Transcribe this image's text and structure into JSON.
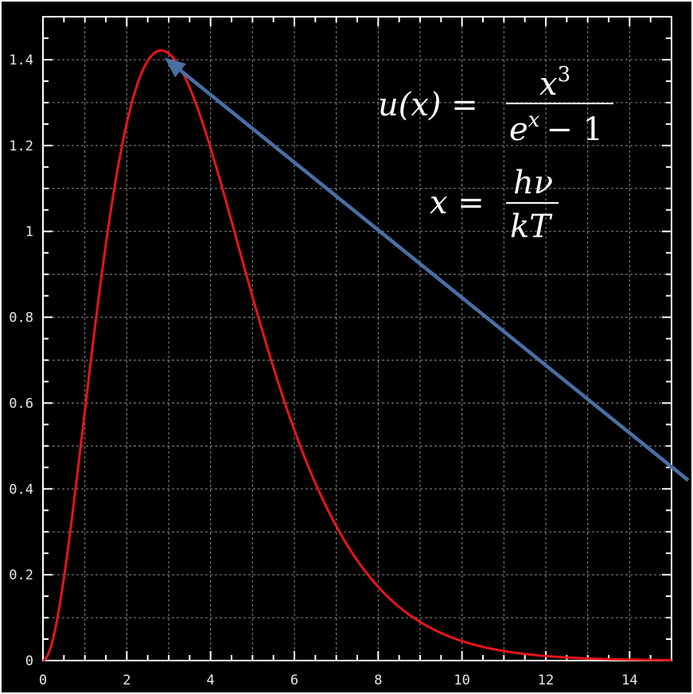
{
  "chart_data": {
    "type": "line",
    "title": "",
    "xlabel": "",
    "ylabel": "",
    "xlim": [
      0,
      15
    ],
    "ylim": [
      0,
      1.5
    ],
    "grid": true,
    "x_ticks": [
      "0",
      "2",
      "4",
      "6",
      "8",
      "10",
      "12",
      "14"
    ],
    "y_ticks": [
      "0",
      "0.2",
      "0.4",
      "0.6",
      "0.8",
      "1",
      "1.2",
      "1.4"
    ],
    "series": [
      {
        "color": "#e8141c",
        "function": "x^3/(e^x-1)",
        "x": [
          0,
          0.5,
          1,
          1.5,
          2,
          2.5,
          2.82,
          3,
          3.5,
          4,
          5,
          6,
          7,
          8,
          9,
          10,
          11,
          12,
          13,
          14,
          15
        ],
        "y": [
          0,
          0.192,
          0.582,
          0.965,
          1.252,
          1.401,
          1.421,
          1.417,
          1.346,
          1.195,
          0.849,
          0.537,
          0.314,
          0.172,
          0.09,
          0.045,
          0.022,
          0.011,
          0.005,
          0.002,
          0.001
        ]
      }
    ],
    "annotations": [
      {
        "type": "arrow",
        "color": "#4a6fa5",
        "from": [
          15.4,
          0.42
        ],
        "to": [
          2.9,
          1.405
        ]
      }
    ],
    "equations": {
      "eq1_lhs": "u(x) =",
      "eq1_num_base": "x",
      "eq1_num_exp": "3",
      "eq1_den_base": "e",
      "eq1_den_exp": "x",
      "eq1_den_tail": "− 1",
      "eq2_lhs": "x =",
      "eq2_num": "hν",
      "eq2_den": "kT"
    }
  }
}
